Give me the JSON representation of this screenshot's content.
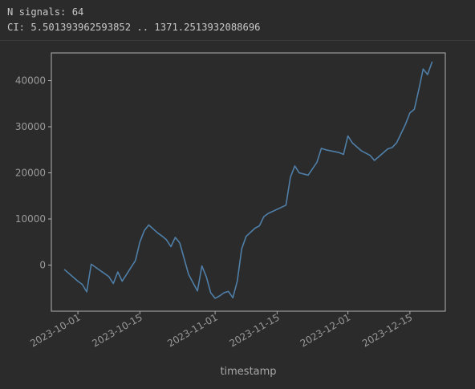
{
  "console": {
    "lines": [
      "N signals: 64",
      "CI: 5.501393962593852 .. 1371.2513932088696"
    ]
  },
  "colors": {
    "background": "#2b2b2b",
    "axes": "#b0b0b0",
    "line": "#4f7fa8",
    "text": "#9a9a9a"
  },
  "chart_data": {
    "type": "line",
    "title": "",
    "xlabel": "timestamp",
    "ylabel": "",
    "grid": false,
    "x_ticks": [
      "2023-10-01",
      "2023-10-15",
      "2023-11-01",
      "2023-11-15",
      "2023-12-01",
      "2023-12-15"
    ],
    "y_ticks": [
      0,
      10000,
      20000,
      30000,
      40000
    ],
    "xlim": [
      "2023-09-25",
      "2023-12-23"
    ],
    "ylim": [
      -10000,
      46000
    ],
    "series": [
      {
        "x": [
          "2023-09-28",
          "2023-10-01",
          "2023-10-02",
          "2023-10-03",
          "2023-10-04",
          "2023-10-08",
          "2023-10-09",
          "2023-10-10",
          "2023-10-11",
          "2023-10-14",
          "2023-10-15",
          "2023-10-16",
          "2023-10-17",
          "2023-10-19",
          "2023-10-20",
          "2023-10-21",
          "2023-10-22",
          "2023-10-23",
          "2023-10-24",
          "2023-10-26",
          "2023-10-27",
          "2023-10-28",
          "2023-10-29",
          "2023-10-30",
          "2023-10-31",
          "2023-11-01",
          "2023-11-02",
          "2023-11-03",
          "2023-11-04",
          "2023-11-05",
          "2023-11-06",
          "2023-11-07",
          "2023-11-08",
          "2023-11-10",
          "2023-11-11",
          "2023-11-12",
          "2023-11-13",
          "2023-11-17",
          "2023-11-18",
          "2023-11-19",
          "2023-11-20",
          "2023-11-22",
          "2023-11-24",
          "2023-11-25",
          "2023-11-26",
          "2023-11-29",
          "2023-11-30",
          "2023-12-01",
          "2023-12-02",
          "2023-12-04",
          "2023-12-05",
          "2023-12-06",
          "2023-12-07",
          "2023-12-10",
          "2023-12-11",
          "2023-12-12",
          "2023-12-13",
          "2023-12-14",
          "2023-12-15",
          "2023-12-16",
          "2023-12-17",
          "2023-12-18",
          "2023-12-19",
          "2023-12-20"
        ],
        "y": [
          -1000,
          -3500,
          -4200,
          -5800,
          200,
          -2500,
          -4000,
          -1500,
          -3500,
          1000,
          5000,
          7500,
          8700,
          7000,
          6300,
          5500,
          4000,
          6000,
          4800,
          -2000,
          -3800,
          -5600,
          -200,
          -2500,
          -6000,
          -7200,
          -6700,
          -6000,
          -5700,
          -7100,
          -3500,
          3500,
          6200,
          8000,
          8500,
          10500,
          11200,
          13000,
          19000,
          21500,
          20000,
          19500,
          22300,
          25300,
          25000,
          24400,
          24000,
          28000,
          26500,
          24800,
          24300,
          23800,
          22700,
          25200,
          25500,
          26500,
          28500,
          30500,
          33000,
          33800,
          38000,
          42500,
          41300,
          44000
        ]
      }
    ]
  }
}
